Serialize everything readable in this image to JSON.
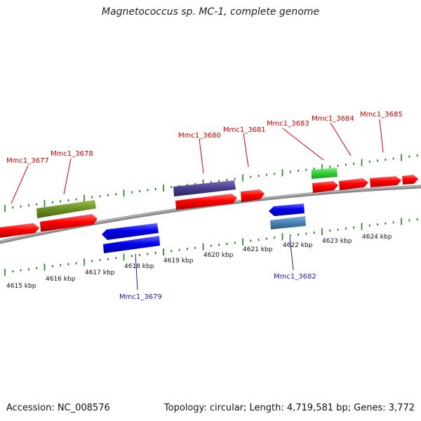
{
  "title": "Magnetococcus sp. MC-1, complete genome",
  "footer": {
    "accession": "Accession: NC_008576",
    "summary": "Topology: circular; Length: 4,719,581 bp; Genes: 3,772"
  },
  "colors": {
    "backbone": "#8a8a8a",
    "tick": "#1f7a1f",
    "gene_plus": "#ff0000",
    "gene_minus": "#0000ee",
    "label_plus": "#cc0000",
    "label_minus": "#1a1aaa",
    "feature_olive": "#6b8e23",
    "feature_slate": "#483d8b",
    "feature_green": "#32cd32",
    "feature_steel": "#4682b4"
  },
  "scale_labels": [
    "4615 kbp",
    "4616 kbp",
    "4617 kbp",
    "4618 kbp",
    "4619 kbp",
    "4620 kbp",
    "4621 kbp",
    "4622 kbp",
    "4623 kbp",
    "4624 kbp"
  ],
  "genes": [
    {
      "label": "Mmc1_3677",
      "strand": "+"
    },
    {
      "label": "Mmc1_3678",
      "strand": "+"
    },
    {
      "label": "Mmc1_3679",
      "strand": "-"
    },
    {
      "label": "Mmc1_3680",
      "strand": "+"
    },
    {
      "label": "Mmc1_3681",
      "strand": "+"
    },
    {
      "label": "Mmc1_3682",
      "strand": "-"
    },
    {
      "label": "Mmc1_3683",
      "strand": "+"
    },
    {
      "label": "Mmc1_3684",
      "strand": "+"
    },
    {
      "label": "Mmc1_3685",
      "strand": "+"
    }
  ]
}
